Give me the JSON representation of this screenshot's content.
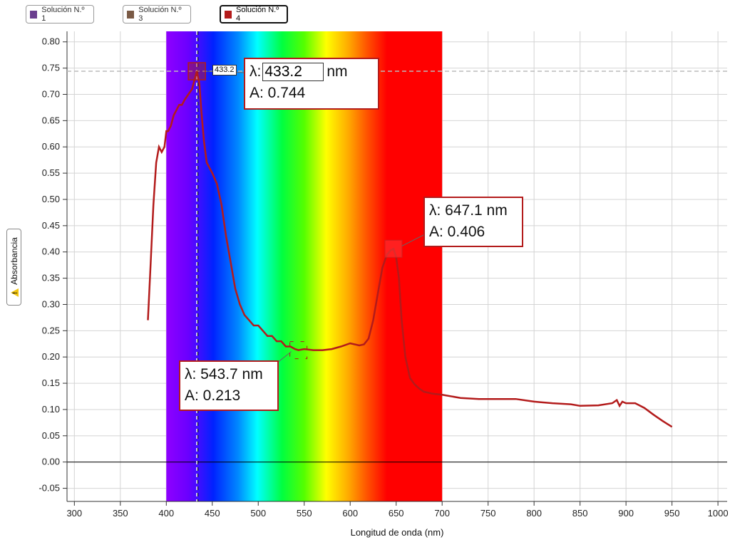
{
  "legend": [
    {
      "label": "Solución N.º 1",
      "color": "#6b3f8f",
      "active": false
    },
    {
      "label": "Solución N.º 3",
      "color": "#7a5a45",
      "active": false
    },
    {
      "label": "Solución N.º 4",
      "color": "#b31b1b",
      "active": true
    }
  ],
  "cursor": {
    "small_tag": "433.2",
    "lambda_prefix": "λ:",
    "lambda_value": "433.2",
    "unit": "nm",
    "abs_text": "A: 0.744"
  },
  "peak_label": {
    "line1": "λ: 647.1 nm",
    "line2": "A: 0.406"
  },
  "min_label": {
    "line1": "λ: 543.7 nm",
    "line2": "A: 0.213"
  },
  "chart_data": {
    "type": "line",
    "xlabel": "Longitud de onda (nm)",
    "ylabel": "Absorbancia",
    "xlim": [
      292,
      1010
    ],
    "ylim": [
      -0.075,
      0.82
    ],
    "xticks": [
      300,
      350,
      400,
      450,
      500,
      550,
      600,
      650,
      700,
      750,
      800,
      850,
      900,
      950,
      1000
    ],
    "yticks": [
      -0.05,
      0.0,
      0.05,
      0.1,
      0.15,
      0.2,
      0.25,
      0.3,
      0.35,
      0.4,
      0.45,
      0.5,
      0.55,
      0.6,
      0.65,
      0.7,
      0.75,
      0.8
    ],
    "spectrum_band": [
      400,
      700
    ],
    "grid": true,
    "series": [
      {
        "color": "#b31b1b",
        "x": [
          380,
          383,
          386,
          389,
          392,
          395,
          398,
          400,
          402,
          405,
          408,
          411,
          414,
          417,
          420,
          424,
          428,
          431,
          433.2,
          436,
          438,
          441,
          444,
          447,
          450,
          455,
          460,
          465,
          470,
          475,
          480,
          485,
          490,
          495,
          500,
          505,
          510,
          515,
          520,
          525,
          530,
          535,
          540,
          543.7,
          550,
          560,
          570,
          580,
          590,
          600,
          610,
          615,
          620,
          625,
          630,
          635,
          640,
          644,
          647.1,
          650,
          653,
          656,
          660,
          665,
          670,
          675,
          680,
          690,
          700,
          720,
          740,
          760,
          780,
          800,
          820,
          840,
          850,
          870,
          885,
          890,
          893,
          896,
          900,
          910,
          920,
          930,
          940,
          950
        ],
        "y": [
          0.27,
          0.38,
          0.49,
          0.57,
          0.6,
          0.59,
          0.6,
          0.63,
          0.63,
          0.64,
          0.66,
          0.67,
          0.68,
          0.68,
          0.69,
          0.7,
          0.71,
          0.73,
          0.744,
          0.72,
          0.67,
          0.61,
          0.57,
          0.56,
          0.55,
          0.53,
          0.49,
          0.43,
          0.38,
          0.33,
          0.3,
          0.28,
          0.27,
          0.26,
          0.26,
          0.25,
          0.24,
          0.24,
          0.23,
          0.23,
          0.22,
          0.22,
          0.215,
          0.213,
          0.215,
          0.213,
          0.213,
          0.215,
          0.22,
          0.226,
          0.222,
          0.224,
          0.235,
          0.27,
          0.32,
          0.37,
          0.395,
          0.403,
          0.406,
          0.39,
          0.35,
          0.27,
          0.2,
          0.16,
          0.148,
          0.14,
          0.134,
          0.13,
          0.128,
          0.122,
          0.12,
          0.12,
          0.12,
          0.115,
          0.112,
          0.11,
          0.107,
          0.108,
          0.112,
          0.118,
          0.107,
          0.115,
          0.112,
          0.112,
          0.103,
          0.09,
          0.078,
          0.067
        ]
      }
    ],
    "markers": [
      {
        "x": 433.2,
        "y": 0.744
      },
      {
        "x": 647.1,
        "y": 0.406
      },
      {
        "x": 543.7,
        "y": 0.213
      }
    ],
    "cursor_x": 433.2,
    "cursor_y": 0.744
  }
}
